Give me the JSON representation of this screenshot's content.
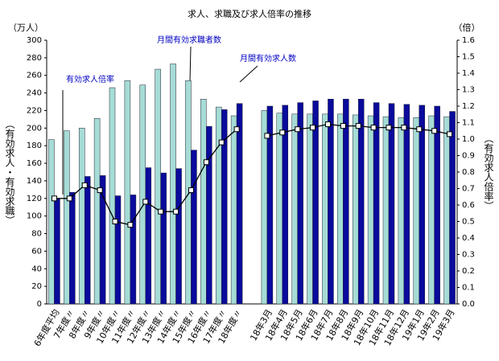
{
  "chart_data": {
    "type": "bar",
    "title": "求人、求職及び求人倍率の推移",
    "y_unit": "（万人）",
    "y2_unit": "（倍）",
    "ylabel": "（有効求人・有効求職）",
    "y2label": "（有効求人倍率）",
    "categories": [
      "6年度平均",
      "7年度〃",
      "8年度〃",
      "9年度〃",
      "10年度〃",
      "11年度〃",
      "12年度〃",
      "13年度〃",
      "14年度〃",
      "15年度〃",
      "16年度〃",
      "17年度〃",
      "18年度〃",
      null,
      "18年3月",
      "18年4月",
      "18年5月",
      "18年6月",
      "18年7月",
      "18年8月",
      "18年9月",
      "18年10月",
      "18年11月",
      "18年12月",
      "19年1月",
      "19年2月",
      "19年3月"
    ],
    "series": [
      {
        "name": "月間有効求職者数",
        "color": "#a6dcd6",
        "type": "bar",
        "values": [
          187,
          197,
          200,
          211,
          246,
          254,
          249,
          267,
          273,
          254,
          233,
          224,
          214,
          null,
          220,
          217,
          216,
          216,
          216,
          216,
          215,
          214,
          213,
          212,
          212,
          214,
          213
        ]
      },
      {
        "name": "月間有効求人数",
        "color": "#0a0a9c",
        "type": "bar",
        "values": [
          120,
          127,
          145,
          146,
          123,
          124,
          155,
          149,
          154,
          175,
          202,
          221,
          228,
          null,
          225,
          226,
          229,
          231,
          233,
          233,
          233,
          229,
          228,
          227,
          226,
          225,
          219
        ]
      },
      {
        "name": "有効求人倍率",
        "color": "#000000",
        "type": "line",
        "axis": "y2",
        "values": [
          0.64,
          0.64,
          0.72,
          0.69,
          0.5,
          0.48,
          0.62,
          0.56,
          0.56,
          0.69,
          0.86,
          0.98,
          1.06,
          null,
          1.02,
          1.04,
          1.06,
          1.07,
          1.09,
          1.08,
          1.08,
          1.07,
          1.07,
          1.07,
          1.06,
          1.05,
          1.03
        ]
      }
    ],
    "ylim": [
      0,
      300
    ],
    "yticks": [
      0,
      20,
      40,
      60,
      80,
      100,
      120,
      140,
      160,
      180,
      200,
      220,
      240,
      260,
      280,
      300
    ],
    "y2lim": [
      0,
      1.6
    ],
    "y2ticks": [
      {
        "value": 0,
        "label": "0.0"
      },
      0.1,
      0.2,
      0.3,
      0.4,
      0.5,
      0.6,
      0.7,
      0.8,
      0.9,
      {
        "value": 1,
        "label": "1.0"
      },
      1.1,
      1.2,
      1.3,
      1.4,
      1.5,
      1.6
    ]
  }
}
